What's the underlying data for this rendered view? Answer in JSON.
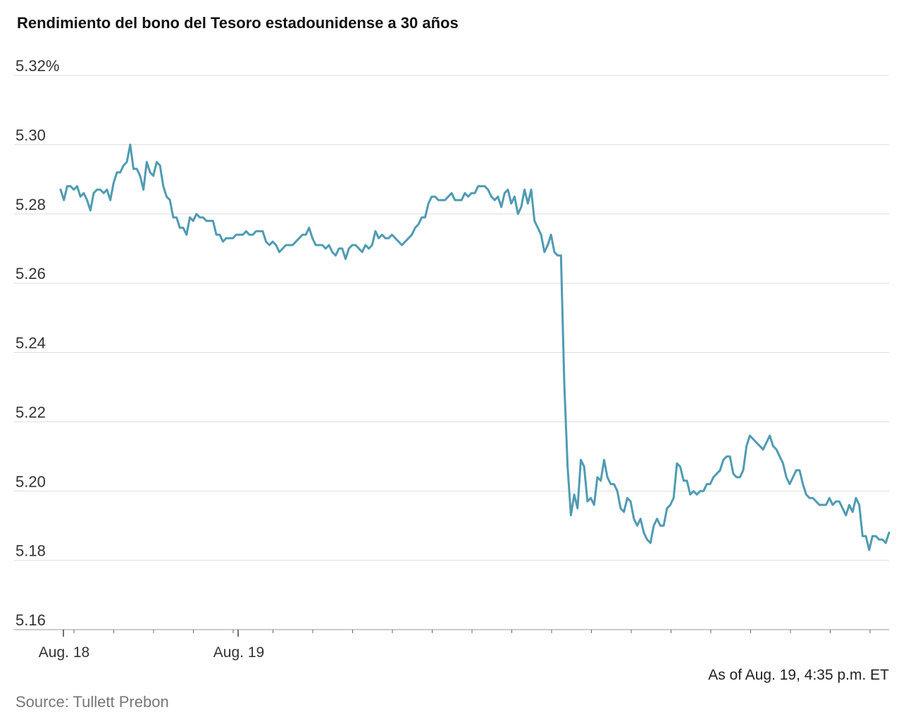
{
  "chart_data": {
    "type": "line",
    "title": "Rendimiento del bono del Tesoro estadounidense a 30 años",
    "xlabel": "",
    "ylabel": "",
    "y_tick_labels": [
      "5.32%",
      "5.30",
      "5.28",
      "5.26",
      "5.24",
      "5.22",
      "5.20",
      "5.18",
      "5.16"
    ],
    "y_ticks": [
      5.32,
      5.3,
      5.28,
      5.26,
      5.24,
      5.22,
      5.2,
      5.18,
      5.16
    ],
    "ylim": [
      5.16,
      5.32
    ],
    "x_tick_labels": [
      "Aug. 18",
      "Aug. 19"
    ],
    "grid": "horizontal",
    "line_color": "#4f9bb3",
    "series": [
      {
        "values": [
          5.287,
          5.284,
          5.288,
          5.288,
          5.287,
          5.288,
          5.285,
          5.286,
          5.284,
          5.281,
          5.286,
          5.287,
          5.287,
          5.286,
          5.287,
          5.284,
          5.289,
          5.292,
          5.292,
          5.294,
          5.295,
          5.3,
          5.293,
          5.293,
          5.291,
          5.287,
          5.295,
          5.292,
          5.291,
          5.295,
          5.294,
          5.288,
          5.285,
          5.284,
          5.279,
          5.279,
          5.276,
          5.276,
          5.274,
          5.279,
          5.278,
          5.28,
          5.279,
          5.279,
          5.278,
          5.278,
          5.278,
          5.274,
          5.274,
          5.272,
          5.273,
          5.273,
          5.273,
          5.274,
          5.274,
          5.274,
          5.275,
          5.274,
          5.274,
          5.275,
          5.275,
          5.275,
          5.272,
          5.271,
          5.272,
          5.271,
          5.269,
          5.27,
          5.271,
          5.271,
          5.271,
          5.272,
          5.273,
          5.274,
          5.274,
          5.276,
          5.273,
          5.271,
          5.271,
          5.271,
          5.27,
          5.271,
          5.269,
          5.268,
          5.27,
          5.27,
          5.267,
          5.27,
          5.271,
          5.271,
          5.27,
          5.269,
          5.271,
          5.27,
          5.271,
          5.275,
          5.273,
          5.274,
          5.273,
          5.273,
          5.274,
          5.273,
          5.272,
          5.271,
          5.272,
          5.273,
          5.274,
          5.276,
          5.277,
          5.279,
          5.279,
          5.283,
          5.285,
          5.285,
          5.284,
          5.284,
          5.284,
          5.285,
          5.286,
          5.284,
          5.284,
          5.284,
          5.286,
          5.285,
          5.286,
          5.286,
          5.288,
          5.288,
          5.288,
          5.287,
          5.285,
          5.284,
          5.285,
          5.282,
          5.286,
          5.287,
          5.283,
          5.285,
          5.28,
          5.282,
          5.287,
          5.283,
          5.287,
          5.278,
          5.276,
          5.274,
          5.269,
          5.271,
          5.274,
          5.269,
          5.268,
          5.268,
          5.231,
          5.207,
          5.193,
          5.199,
          5.195,
          5.209,
          5.207,
          5.197,
          5.198,
          5.196,
          5.204,
          5.203,
          5.209,
          5.204,
          5.202,
          5.202,
          5.2,
          5.195,
          5.194,
          5.198,
          5.197,
          5.192,
          5.19,
          5.192,
          5.188,
          5.186,
          5.185,
          5.19,
          5.192,
          5.19,
          5.19,
          5.195,
          5.196,
          5.198,
          5.208,
          5.207,
          5.203,
          5.203,
          5.199,
          5.2,
          5.199,
          5.2,
          5.2,
          5.202,
          5.202,
          5.204,
          5.205,
          5.206,
          5.209,
          5.21,
          5.21,
          5.205,
          5.204,
          5.204,
          5.206,
          5.213,
          5.216,
          5.215,
          5.214,
          5.213,
          5.212,
          5.214,
          5.216,
          5.213,
          5.212,
          5.21,
          5.208,
          5.204,
          5.202,
          5.204,
          5.206,
          5.206,
          5.202,
          5.199,
          5.198,
          5.198,
          5.197,
          5.196,
          5.196,
          5.196,
          5.198,
          5.196,
          5.197,
          5.197,
          5.195,
          5.193,
          5.196,
          5.194,
          5.198,
          5.196,
          5.187,
          5.187,
          5.183,
          5.187,
          5.187,
          5.186,
          5.186,
          5.185,
          5.188
        ]
      }
    ]
  },
  "footer": {
    "as_of": "As of Aug. 19, 4:35 p.m. ET",
    "source": "Source: Tullett Prebon"
  }
}
